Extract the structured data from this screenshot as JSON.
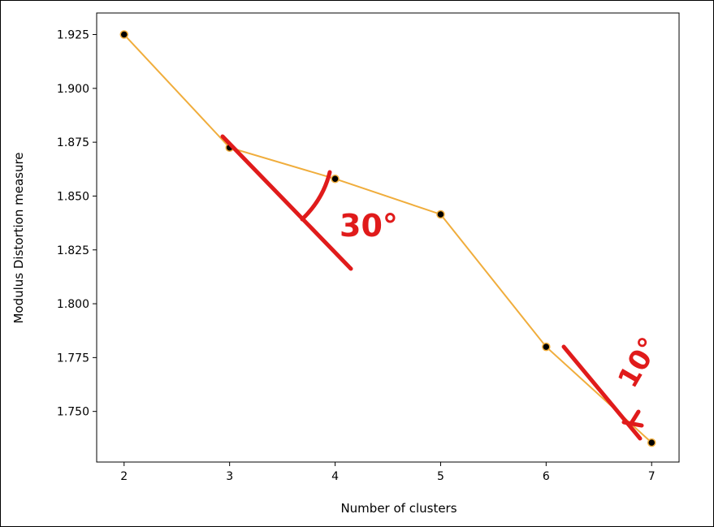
{
  "chart_data": {
    "type": "line",
    "x": [
      2,
      3,
      4,
      5,
      6,
      7
    ],
    "series": [
      {
        "values": [
          1.925,
          1.8725,
          1.858,
          1.8415,
          1.78,
          1.7355
        ]
      }
    ],
    "xlabel": "Number of clusters",
    "ylabel": "Modulus Distortion measure",
    "xticks": [
      "2",
      "3",
      "4",
      "5",
      "6",
      "7"
    ],
    "yticks": [
      "1.750",
      "1.775",
      "1.800",
      "1.825",
      "1.850",
      "1.875",
      "1.900",
      "1.925"
    ],
    "xlim": [
      1.74,
      7.26
    ],
    "ylim": [
      1.7265,
      1.935
    ],
    "grid": false,
    "line_color": "#f0ad3c",
    "marker_color": "#000000",
    "annotations": [
      {
        "text": "30°",
        "color": "#e01b1b"
      },
      {
        "text": "10°",
        "color": "#e01b1b"
      }
    ]
  }
}
